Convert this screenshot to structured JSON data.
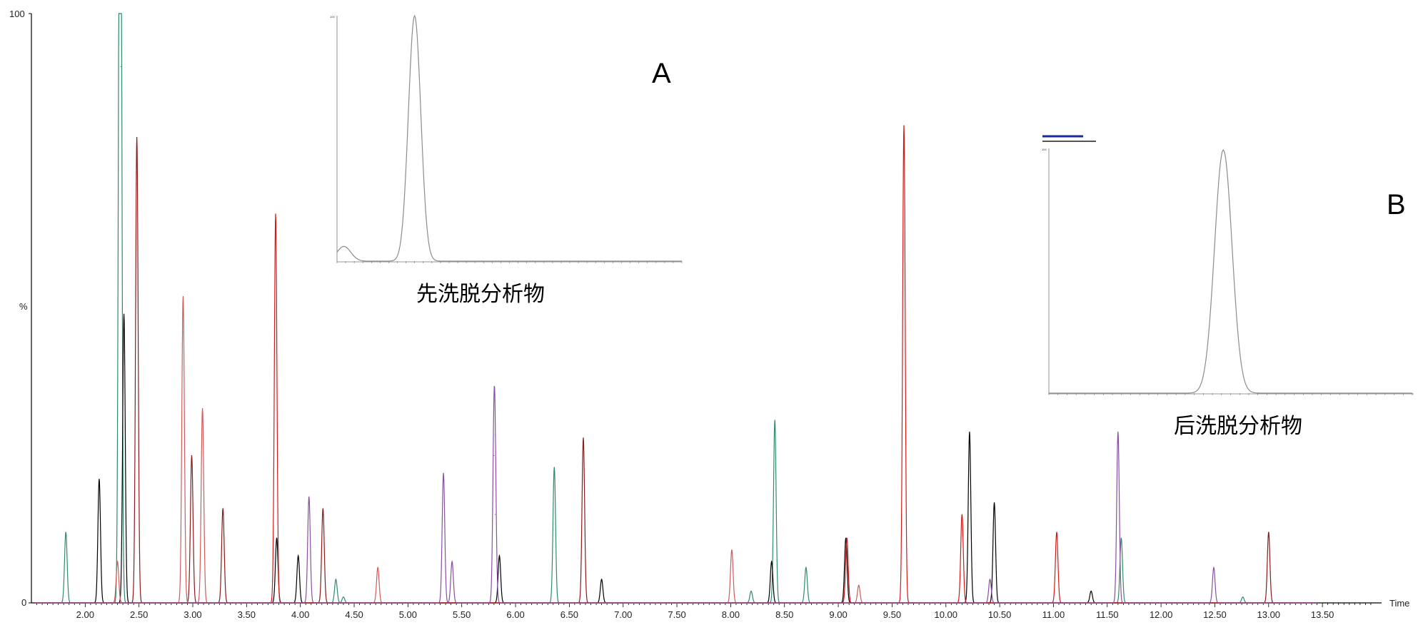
{
  "chart_data": {
    "type": "line",
    "xlabel": "Time",
    "ylabel": "%",
    "xlim": [
      1.5,
      14.05
    ],
    "ylim": [
      0,
      100
    ],
    "xticks": [
      "2.00",
      "2.50",
      "3.00",
      "3.50",
      "4.00",
      "4.50",
      "5.00",
      "5.50",
      "6.00",
      "6.50",
      "7.00",
      "7.50",
      "8.00",
      "8.50",
      "9.00",
      "9.50",
      "10.00",
      "10.50",
      "11.00",
      "11.50",
      "12.00",
      "12.50",
      "13.00",
      "13.50"
    ],
    "yticks": [
      "0",
      "%",
      "100"
    ],
    "series": [
      {
        "color": "#2e8b6e",
        "peaks": [
          [
            1.82,
            12
          ],
          [
            2.32,
            100
          ],
          [
            2.33,
            91
          ],
          [
            4.33,
            4
          ],
          [
            4.4,
            1
          ],
          [
            6.36,
            23
          ],
          [
            8.19,
            2
          ],
          [
            8.41,
            31
          ],
          [
            8.7,
            6
          ],
          [
            11.63,
            11
          ],
          [
            12.76,
            1
          ]
        ]
      },
      {
        "color": "#000000",
        "peaks": [
          [
            2.13,
            21
          ],
          [
            2.36,
            49
          ],
          [
            3.78,
            11
          ],
          [
            3.98,
            8
          ],
          [
            5.85,
            8
          ],
          [
            6.8,
            4
          ],
          [
            8.38,
            7
          ],
          [
            9.07,
            11
          ],
          [
            10.22,
            29
          ],
          [
            10.45,
            17
          ],
          [
            11.35,
            2
          ]
        ]
      },
      {
        "color": "#8b1a1a",
        "peaks": [
          [
            2.48,
            79
          ],
          [
            2.99,
            25
          ],
          [
            3.28,
            16
          ],
          [
            4.21,
            16
          ],
          [
            6.63,
            28
          ],
          [
            13.0,
            12
          ]
        ]
      },
      {
        "color": "#cd5c5c",
        "peaks": [
          [
            2.3,
            7
          ],
          [
            2.91,
            52
          ],
          [
            3.09,
            33
          ],
          [
            4.72,
            6
          ],
          [
            8.01,
            9
          ],
          [
            9.19,
            3
          ]
        ]
      },
      {
        "color": "#d11a1a",
        "peaks": [
          [
            3.77,
            66
          ],
          [
            9.08,
            11
          ],
          [
            9.61,
            81
          ],
          [
            10.15,
            15
          ],
          [
            11.03,
            12
          ]
        ]
      },
      {
        "color": "#8a4fa3",
        "peaks": [
          [
            4.08,
            18
          ],
          [
            5.33,
            22
          ],
          [
            5.41,
            7
          ],
          [
            5.8,
            25
          ],
          [
            5.81,
            15
          ],
          [
            10.41,
            4
          ],
          [
            11.6,
            29
          ],
          [
            12.49,
            6
          ]
        ]
      }
    ],
    "insets": [
      {
        "letter": "A",
        "caption": "先洗脱分析物",
        "ytop": "100"
      },
      {
        "letter": "B",
        "caption": "后洗脱分析物",
        "ytop": "100"
      }
    ]
  }
}
